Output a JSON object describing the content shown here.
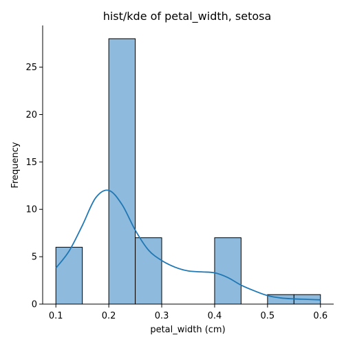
{
  "chart_data": {
    "type": "bar",
    "title": "hist/kde of petal_width, setosa",
    "xlabel": "petal_width (cm)",
    "ylabel": "Frequency",
    "xlim": [
      0.075,
      0.625
    ],
    "ylim": [
      0,
      29.4
    ],
    "xticks": [
      {
        "value": 0.1,
        "label": "0.1"
      },
      {
        "value": 0.2,
        "label": "0.2"
      },
      {
        "value": 0.3,
        "label": "0.3"
      },
      {
        "value": 0.4,
        "label": "0.4"
      },
      {
        "value": 0.5,
        "label": "0.5"
      },
      {
        "value": 0.6,
        "label": "0.6"
      }
    ],
    "yticks": [
      {
        "value": 0,
        "label": "0"
      },
      {
        "value": 5,
        "label": "5"
      },
      {
        "value": 10,
        "label": "10"
      },
      {
        "value": 15,
        "label": "15"
      },
      {
        "value": 20,
        "label": "20"
      },
      {
        "value": 25,
        "label": "25"
      }
    ],
    "bins": [
      {
        "x0": 0.1,
        "x1": 0.15,
        "count": 6
      },
      {
        "x0": 0.15,
        "x1": 0.2,
        "count": 0
      },
      {
        "x0": 0.2,
        "x1": 0.25,
        "count": 28
      },
      {
        "x0": 0.25,
        "x1": 0.3,
        "count": 7
      },
      {
        "x0": 0.3,
        "x1": 0.35,
        "count": 0
      },
      {
        "x0": 0.35,
        "x1": 0.4,
        "count": 0
      },
      {
        "x0": 0.4,
        "x1": 0.45,
        "count": 7
      },
      {
        "x0": 0.45,
        "x1": 0.5,
        "count": 0
      },
      {
        "x0": 0.5,
        "x1": 0.55,
        "count": 1
      },
      {
        "x0": 0.55,
        "x1": 0.6,
        "count": 1
      }
    ],
    "kde": {
      "x": [
        0.1,
        0.125,
        0.15,
        0.175,
        0.2,
        0.225,
        0.25,
        0.275,
        0.3,
        0.325,
        0.35,
        0.375,
        0.4,
        0.425,
        0.45,
        0.475,
        0.5,
        0.525,
        0.55,
        0.575,
        0.6
      ],
      "y": [
        3.8,
        5.6,
        8.3,
        11.2,
        12.0,
        10.5,
        7.8,
        5.7,
        4.6,
        3.9,
        3.5,
        3.4,
        3.3,
        2.8,
        2.0,
        1.4,
        0.9,
        0.65,
        0.55,
        0.5,
        0.45
      ]
    },
    "colors": {
      "bar_fill": "#8ebbdd",
      "kde_line": "#1f77b4"
    },
    "grid": false,
    "legend": "none"
  }
}
